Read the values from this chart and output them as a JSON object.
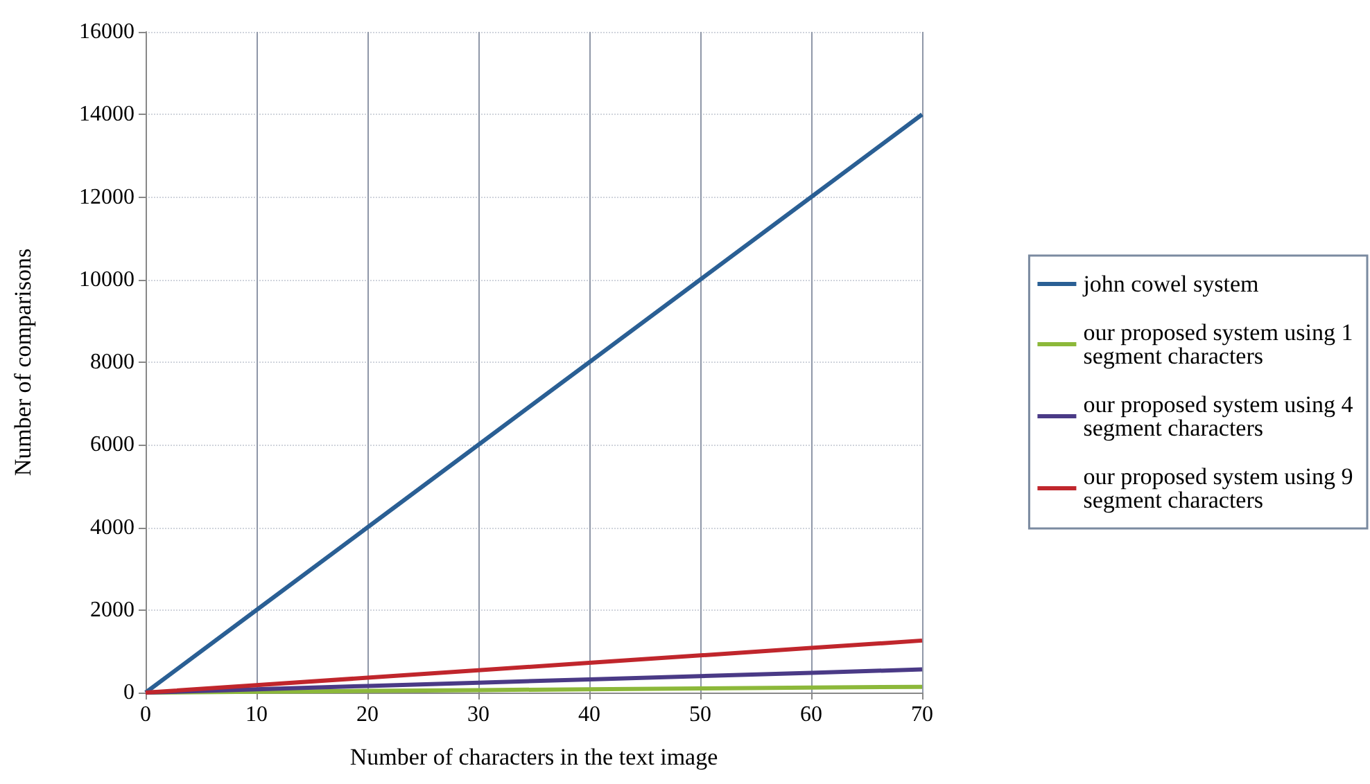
{
  "chart_data": {
    "type": "line",
    "xlabel": "Number of characters in the text image",
    "ylabel": "Number of comparisons",
    "x": [
      0,
      10,
      20,
      30,
      40,
      50,
      60,
      70
    ],
    "series": [
      {
        "name": "john cowel system",
        "color": "#2a5f94",
        "values": [
          0,
          2000,
          4000,
          6000,
          8000,
          10000,
          12000,
          14000
        ]
      },
      {
        "name": "our proposed system using 1 segment characters",
        "color": "#8cb83a",
        "values": [
          0,
          20,
          40,
          60,
          80,
          100,
          120,
          140
        ]
      },
      {
        "name": "our proposed system using 4 segment characters",
        "color": "#4a3a86",
        "values": [
          0,
          80,
          160,
          240,
          320,
          400,
          480,
          560
        ]
      },
      {
        "name": "our proposed system using 9 segment characters",
        "color": "#c0262c",
        "values": [
          0,
          180,
          360,
          540,
          720,
          900,
          1080,
          1260
        ]
      }
    ],
    "xlim": [
      0,
      70
    ],
    "xticks": [
      0,
      10,
      20,
      30,
      40,
      50,
      60,
      70
    ],
    "ylim": [
      0,
      16000
    ],
    "yticks": [
      0,
      2000,
      4000,
      6000,
      8000,
      10000,
      12000,
      14000,
      16000
    ],
    "grid": true,
    "legend": "right",
    "marker": "none",
    "line_style": "solid"
  }
}
